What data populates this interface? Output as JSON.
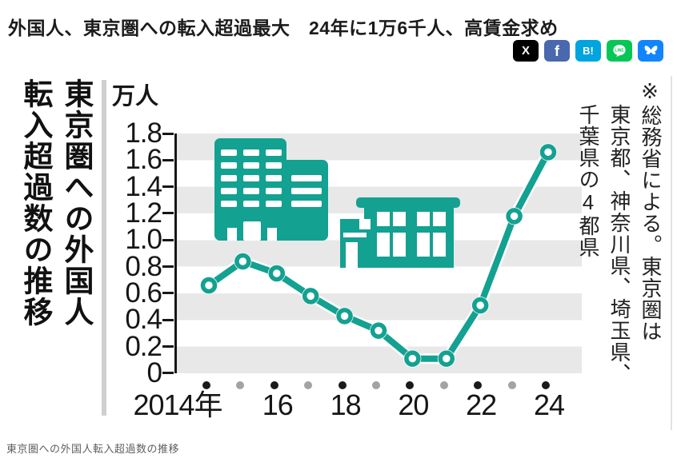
{
  "header": {
    "title": "外国人、東京圏への転入超過最大　24年に1万6千人、高賃金求め"
  },
  "social": {
    "buttons": [
      {
        "name": "x",
        "glyph": "X",
        "color": "#000000"
      },
      {
        "name": "facebook",
        "glyph": "f",
        "color": "#4968ad"
      },
      {
        "name": "hatena",
        "glyph": "B!",
        "color": "#00a4de"
      },
      {
        "name": "line",
        "glyph": "",
        "color": "#06c755"
      },
      {
        "name": "bluesky",
        "glyph": "",
        "color": "#1185fe"
      }
    ]
  },
  "figure": {
    "left_title_lines": [
      "東京圏への外国人",
      "転入超過数の推移"
    ],
    "unit": "万人",
    "note_lines": [
      "※総務省による。東京圏は",
      "東京都、神奈川県、埼玉県、",
      "千葉県の4都県"
    ],
    "caption": "東京圏への外国人転入超過数の推移"
  },
  "chart_data": {
    "type": "line",
    "title": "東京圏への外国人転入超過数の推移",
    "ylabel": "万人",
    "x": [
      2014,
      2015,
      2016,
      2017,
      2018,
      2019,
      2020,
      2021,
      2022,
      2023,
      2024
    ],
    "values": [
      0.66,
      0.84,
      0.75,
      0.58,
      0.43,
      0.32,
      0.11,
      0.11,
      0.51,
      1.18,
      1.66
    ],
    "ylim": [
      0,
      1.8
    ],
    "yticks": [
      "1.8",
      "1.6",
      "1.4",
      "1.2",
      "1.0",
      "0.8",
      "0.6",
      "0.4",
      "0.2",
      "0"
    ],
    "xtick_labels": [
      "2014年",
      "16",
      "18",
      "20",
      "22",
      "24"
    ],
    "xtick_indices": [
      0,
      2,
      4,
      6,
      8,
      10
    ],
    "grid": "alternating horizontal stripes",
    "legend": "none",
    "line_color": "#13a191",
    "stripe_color": "#e8e8e8",
    "dot_colors": {
      "even": "#1a1a1a",
      "odd": "#a3a3a3"
    }
  }
}
